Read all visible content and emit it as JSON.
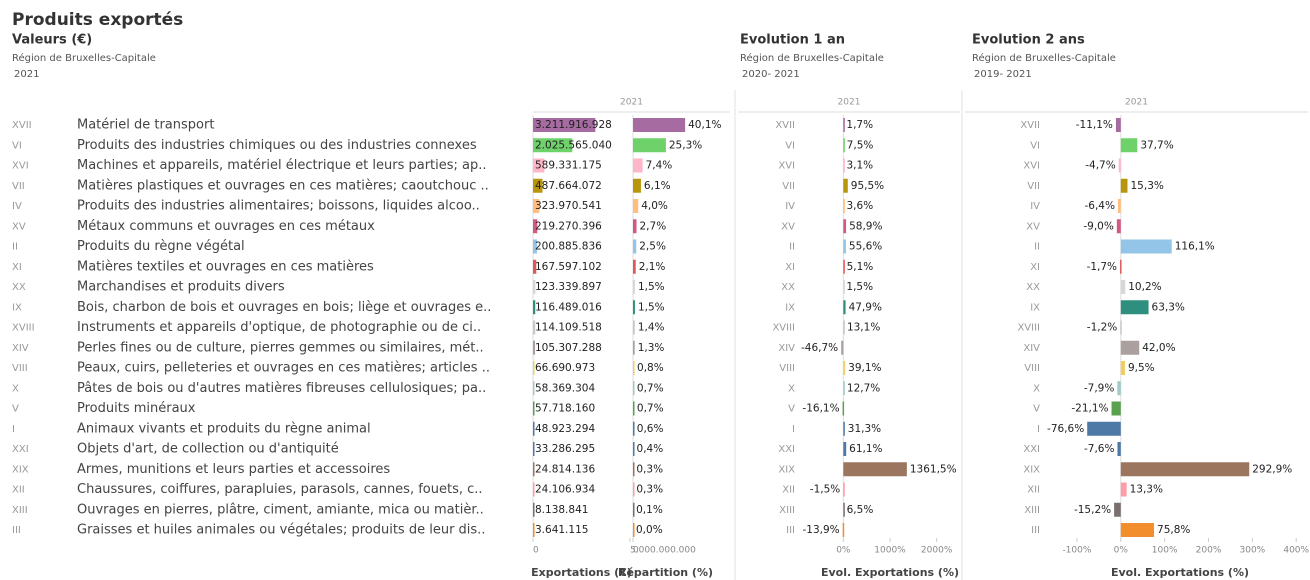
{
  "title": "Produits exportés",
  "rows": {
    "codes": [
      "XVII",
      "VI",
      "XVI",
      "VII",
      "IV",
      "XV",
      "II",
      "XI",
      "XX",
      "IX",
      "XVIII",
      "XIV",
      "VIII",
      "X",
      "V",
      "I",
      "XXI",
      "XIX",
      "XII",
      "XIII",
      "III"
    ],
    "labels": [
      "Matériel de transport",
      "Produits des industries chimiques ou des industries connexes",
      "Machines et appareils, matériel électrique et leurs parties; ap..",
      "Matières plastiques et ouvrages en ces matières; caoutchouc ..",
      "Produits des industries alimentaires; boissons, liquides alcoo..",
      "Métaux communs et ouvrages en ces métaux",
      "Produits du règne végétal",
      "Matières textiles et ouvrages en ces matières",
      "Marchandises et produits divers",
      "Bois, charbon de bois et ouvrages en bois; liège et ouvrages e..",
      "Instruments et appareils d'optique, de photographie ou de ci..",
      "Perles fines ou de culture, pierres gemmes ou similaires, mét..",
      "Peaux, cuirs, pelleteries et ouvrages en ces matières; articles ..",
      "Pâtes de bois ou d'autres matières fibreuses cellulosiques; pa..",
      "Produits minéraux",
      "Animaux vivants et produits du règne animal",
      "Objets d'art, de collection ou d'antiquité",
      "Armes, munitions et leurs parties et accessoires",
      "Chaussures, coiffures, parapluies, parasols, cannes, fouets, c..",
      "Ouvrages en pierres, plâtre, ciment, amiante, mica ou matièr..",
      "Graisses et huiles animales ou végétales; produits de leur dis.."
    ],
    "colors": [
      "#a66ba0",
      "#6fd16a",
      "#ffb6c8",
      "#b8960c",
      "#ffbe7d",
      "#d4587f",
      "#92c5e8",
      "#e15759",
      "#d7d7d7",
      "#2f8f7f",
      "#c8c8c8",
      "#aaa09f",
      "#f1ce63",
      "#a0cbc8",
      "#59a14f",
      "#4e79a7",
      "#4e79a7",
      "#9c755f",
      "#ff9da7",
      "#79706e",
      "#f28e2b"
    ]
  },
  "chart_data": [
    {
      "type": "bar",
      "title": "Valeurs (€)",
      "subtitle": "Région de Bruxelles-Capitale",
      "period": "2021",
      "column_header": "2021",
      "xlabel": "Exportations (€)",
      "values": [
        3211916928,
        2025565040,
        589331175,
        487664072,
        323970541,
        219270396,
        200885836,
        167597102,
        123339897,
        116489016,
        114109518,
        105307288,
        66690973,
        58369304,
        57718160,
        48923294,
        33286295,
        24814136,
        24106934,
        8138841,
        3641115
      ],
      "value_labels": [
        "3.211.916.928",
        "2.025.565.040",
        "589.331.175",
        "487.664.072",
        "323.970.541",
        "219.270.396",
        "200.885.836",
        "167.597.102",
        "123.339.897",
        "116.489.016",
        "114.109.518",
        "105.307.288",
        "66.690.973",
        "58.369.304",
        "57.718.160",
        "48.923.294",
        "33.286.295",
        "24.814.136",
        "24.106.934",
        "8.138.841",
        "3.641.115"
      ],
      "xlim": [
        0,
        5000000000
      ],
      "xticks": [
        0,
        {
          "value": 5000000000,
          "label": "5.000.000.000"
        }
      ]
    },
    {
      "type": "bar",
      "xlabel": "Répartition (%)",
      "values": [
        40.1,
        25.3,
        7.4,
        6.1,
        4.0,
        2.7,
        2.5,
        2.1,
        1.5,
        1.5,
        1.4,
        1.3,
        0.8,
        0.7,
        0.7,
        0.6,
        0.4,
        0.3,
        0.3,
        0.1,
        0.0
      ],
      "value_labels": [
        "40,1%",
        "25,3%",
        "7,4%",
        "6,1%",
        "4,0%",
        "2,7%",
        "2,5%",
        "2,1%",
        "1,5%",
        "1,5%",
        "1,4%",
        "1,3%",
        "0,8%",
        "0,7%",
        "0,7%",
        "0,6%",
        "0,4%",
        "0,3%",
        "0,3%",
        "0,1%",
        "0,0%"
      ],
      "xlim": [
        0,
        50
      ],
      "xticks": [
        0
      ]
    },
    {
      "type": "bar",
      "title": "Evolution 1 an",
      "subtitle": "Région de Bruxelles-Capitale",
      "period": "2020- 2021",
      "column_header": "2021",
      "xlabel": "Evol. Exportations (%)",
      "values": [
        1.7,
        7.5,
        3.1,
        95.5,
        3.6,
        58.9,
        55.6,
        5.1,
        1.5,
        47.9,
        13.1,
        -46.7,
        39.1,
        12.7,
        -16.1,
        31.3,
        61.1,
        1361.5,
        -1.5,
        6.5,
        -13.9
      ],
      "value_labels": [
        "1,7%",
        "7,5%",
        "3,1%",
        "95,5%",
        "3,6%",
        "58,9%",
        "55,6%",
        "5,1%",
        "1,5%",
        "47,9%",
        "13,1%",
        "-46,7%",
        "39,1%",
        "12,7%",
        "-16,1%",
        "31,3%",
        "61,1%",
        "1361,5%",
        "-1,5%",
        "6,5%",
        "-13,9%"
      ],
      "xlim": [
        -500,
        2500
      ],
      "xticks": [
        {
          "value": 0,
          "label": "0%"
        },
        {
          "value": 1000,
          "label": "1000%"
        },
        {
          "value": 2000,
          "label": "2000%"
        }
      ]
    },
    {
      "type": "bar",
      "title": "Evolution 2 ans",
      "subtitle": "Région de Bruxelles-Capitale",
      "period": "2019- 2021",
      "column_header": "2021",
      "xlabel": "Evol. Exportations (%)",
      "values": [
        -11.1,
        37.7,
        -4.7,
        15.3,
        -6.4,
        -9.0,
        116.1,
        -1.7,
        10.2,
        63.3,
        -1.2,
        42.0,
        9.5,
        -7.9,
        -21.1,
        -76.6,
        -7.6,
        292.9,
        13.3,
        -15.2,
        75.8
      ],
      "value_labels": [
        "-11,1%",
        "37,7%",
        "-4,7%",
        "15,3%",
        "-6,4%",
        "-9,0%",
        "116,1%",
        "-1,7%",
        "10,2%",
        "63,3%",
        "-1,2%",
        "42,0%",
        "9,5%",
        "-7,9%",
        "-21,1%",
        "-76,6%",
        "-7,6%",
        "292,9%",
        "13,3%",
        "-15,2%",
        "75,8%"
      ],
      "xlim": [
        -150,
        420
      ],
      "xticks": [
        {
          "value": -100,
          "label": "-100%"
        },
        {
          "value": 0,
          "label": "0%"
        },
        {
          "value": 100,
          "label": "100%"
        },
        {
          "value": 200,
          "label": "200%"
        },
        {
          "value": 300,
          "label": "300%"
        },
        {
          "value": 400,
          "label": "400%"
        }
      ]
    }
  ]
}
